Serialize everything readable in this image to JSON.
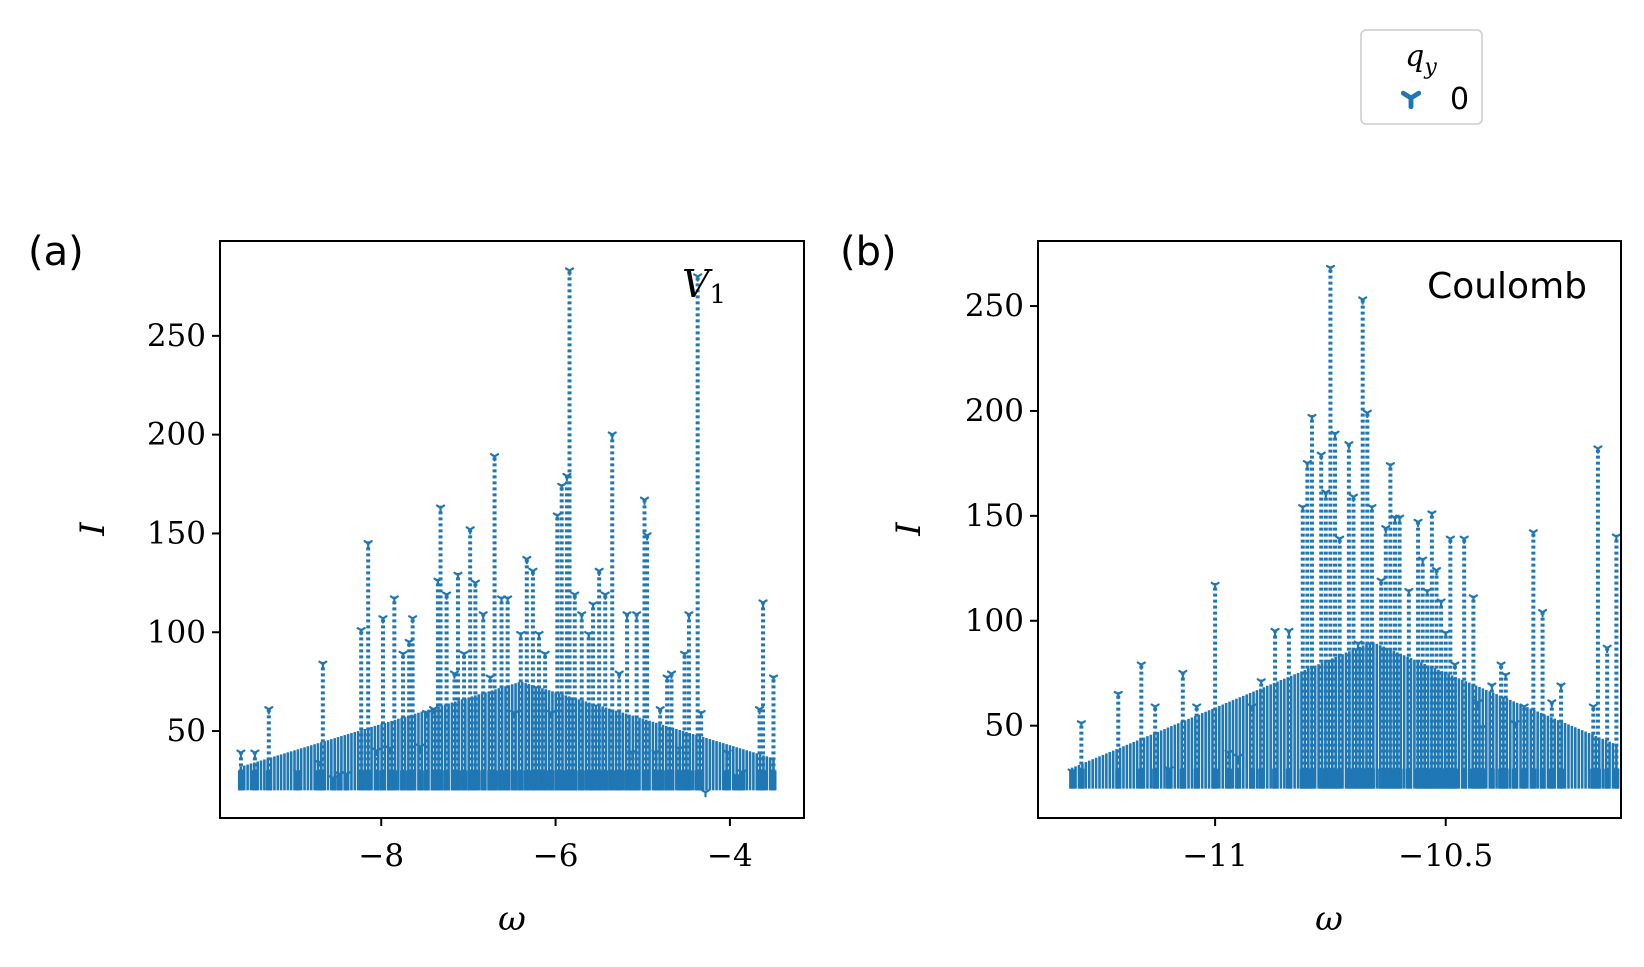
{
  "legend": {
    "title": "q_y",
    "entries": [
      {
        "label": "0",
        "color": "#1f77b4",
        "marker": "tri_down"
      }
    ]
  },
  "chart_data": [
    {
      "type": "scatter",
      "panel_tag": "(a)",
      "annotation": "V1",
      "xlabel": "ω",
      "ylabel": "I",
      "xlim": [
        -9.85,
        -3.15
      ],
      "ylim": [
        6,
        298
      ],
      "xticks": [
        -8,
        -6,
        -4
      ],
      "xtick_labels": [
        "−8",
        "−6",
        "−4"
      ],
      "yticks": [
        50,
        100,
        150,
        200,
        250
      ],
      "ytick_labels": [
        "50",
        "100",
        "150",
        "200",
        "250"
      ],
      "series": [
        {
          "name": "0",
          "color": "#1f77b4",
          "x_min": 20,
          "peaks": [
            [
              -9.61,
              40
            ],
            [
              -9.45,
              40
            ],
            [
              -9.29,
              62
            ],
            [
              -8.96,
              30
            ],
            [
              -8.72,
              35
            ],
            [
              -8.67,
              85
            ],
            [
              -8.55,
              27
            ],
            [
              -8.48,
              29
            ],
            [
              -8.4,
              29
            ],
            [
              -8.23,
              102
            ],
            [
              -8.15,
              146
            ],
            [
              -8.05,
              41
            ],
            [
              -7.98,
              108
            ],
            [
              -7.9,
              42
            ],
            [
              -7.85,
              118
            ],
            [
              -7.75,
              90
            ],
            [
              -7.68,
              96
            ],
            [
              -7.64,
              108
            ],
            [
              -7.55,
              43
            ],
            [
              -7.48,
              60
            ],
            [
              -7.4,
              62
            ],
            [
              -7.35,
              127
            ],
            [
              -7.32,
              164
            ],
            [
              -7.25,
              120
            ],
            [
              -7.16,
              80
            ],
            [
              -7.12,
              130
            ],
            [
              -7.05,
              90
            ],
            [
              -6.98,
              153
            ],
            [
              -6.92,
              126
            ],
            [
              -6.83,
              110
            ],
            [
              -6.75,
              78
            ],
            [
              -6.7,
              190
            ],
            [
              -6.62,
              118
            ],
            [
              -6.55,
              118
            ],
            [
              -6.47,
              60
            ],
            [
              -6.4,
              100
            ],
            [
              -6.33,
              138
            ],
            [
              -6.26,
              132
            ],
            [
              -6.19,
              100
            ],
            [
              -6.12,
              90
            ],
            [
              -6.05,
              60
            ],
            [
              -5.98,
              160
            ],
            [
              -5.93,
              175
            ],
            [
              -5.87,
              180
            ],
            [
              -5.84,
              284
            ],
            [
              -5.78,
              120
            ],
            [
              -5.7,
              110
            ],
            [
              -5.62,
              100
            ],
            [
              -5.57,
              115
            ],
            [
              -5.5,
              132
            ],
            [
              -5.43,
              120
            ],
            [
              -5.35,
              201
            ],
            [
              -5.27,
              80
            ],
            [
              -5.18,
              110
            ],
            [
              -5.12,
              40
            ],
            [
              -5.07,
              110
            ],
            [
              -4.98,
              168
            ],
            [
              -4.95,
              150
            ],
            [
              -4.85,
              40
            ],
            [
              -4.8,
              62
            ],
            [
              -4.72,
              78
            ],
            [
              -4.67,
              80
            ],
            [
              -4.58,
              42
            ],
            [
              -4.52,
              90
            ],
            [
              -4.47,
              110
            ],
            [
              -4.37,
              281
            ],
            [
              -4.33,
              60
            ],
            [
              -4.28,
              20
            ],
            [
              -4.03,
              40
            ],
            [
              -3.92,
              28
            ],
            [
              -3.86,
              30
            ],
            [
              -3.66,
              62
            ],
            [
              -3.62,
              116
            ],
            [
              -3.5,
              78
            ]
          ]
        }
      ]
    },
    {
      "type": "scatter",
      "panel_tag": "(b)",
      "annotation": "Coulomb",
      "xlabel": "ω",
      "ylabel": "I",
      "xlim": [
        -11.384,
        -10.12
      ],
      "ylim": [
        6,
        281
      ],
      "xticks": [
        -11,
        -10.5
      ],
      "xtick_labels": [
        "−11",
        "−10.5"
      ],
      "yticks": [
        50,
        100,
        150,
        200,
        250
      ],
      "ytick_labels": [
        "50",
        "100",
        "150",
        "200",
        "250"
      ],
      "series": [
        {
          "name": "0",
          "color": "#1f77b4",
          "x_min": 20,
          "peaks": [
            [
              -11.31,
              29
            ],
            [
              -11.29,
              52
            ],
            [
              -11.21,
              66
            ],
            [
              -11.16,
              80
            ],
            [
              -11.13,
              60
            ],
            [
              -11.1,
              30
            ],
            [
              -11.07,
              76
            ],
            [
              -11.04,
              60
            ],
            [
              -11.0,
              118
            ],
            [
              -10.97,
              38
            ],
            [
              -10.95,
              36
            ],
            [
              -10.92,
              60
            ],
            [
              -10.9,
              72
            ],
            [
              -10.87,
              96
            ],
            [
              -10.84,
              96
            ],
            [
              -10.81,
              155
            ],
            [
              -10.8,
              176
            ],
            [
              -10.79,
              198
            ],
            [
              -10.77,
              180
            ],
            [
              -10.76,
              162
            ],
            [
              -10.75,
              269
            ],
            [
              -10.74,
              190
            ],
            [
              -10.73,
              140
            ],
            [
              -10.71,
              185
            ],
            [
              -10.7,
              160
            ],
            [
              -10.69,
              90
            ],
            [
              -10.68,
              254
            ],
            [
              -10.67,
              200
            ],
            [
              -10.66,
              155
            ],
            [
              -10.64,
              120
            ],
            [
              -10.63,
              145
            ],
            [
              -10.62,
              175
            ],
            [
              -10.61,
              150
            ],
            [
              -10.6,
              150
            ],
            [
              -10.58,
              115
            ],
            [
              -10.56,
              148
            ],
            [
              -10.55,
              130
            ],
            [
              -10.54,
              115
            ],
            [
              -10.53,
              152
            ],
            [
              -10.52,
              125
            ],
            [
              -10.51,
              110
            ],
            [
              -10.5,
              95
            ],
            [
              -10.49,
              140
            ],
            [
              -10.48,
              80
            ],
            [
              -10.46,
              140
            ],
            [
              -10.44,
              112
            ],
            [
              -10.43,
              62
            ],
            [
              -10.42,
              50
            ],
            [
              -10.4,
              70
            ],
            [
              -10.38,
              80
            ],
            [
              -10.37,
              75
            ],
            [
              -10.35,
              52
            ],
            [
              -10.33,
              60
            ],
            [
              -10.31,
              143
            ],
            [
              -10.29,
              105
            ],
            [
              -10.27,
              62
            ],
            [
              -10.25,
              70
            ],
            [
              -10.18,
              60
            ],
            [
              -10.17,
              183
            ],
            [
              -10.15,
              88
            ],
            [
              -10.13,
              141
            ]
          ]
        }
      ]
    }
  ]
}
